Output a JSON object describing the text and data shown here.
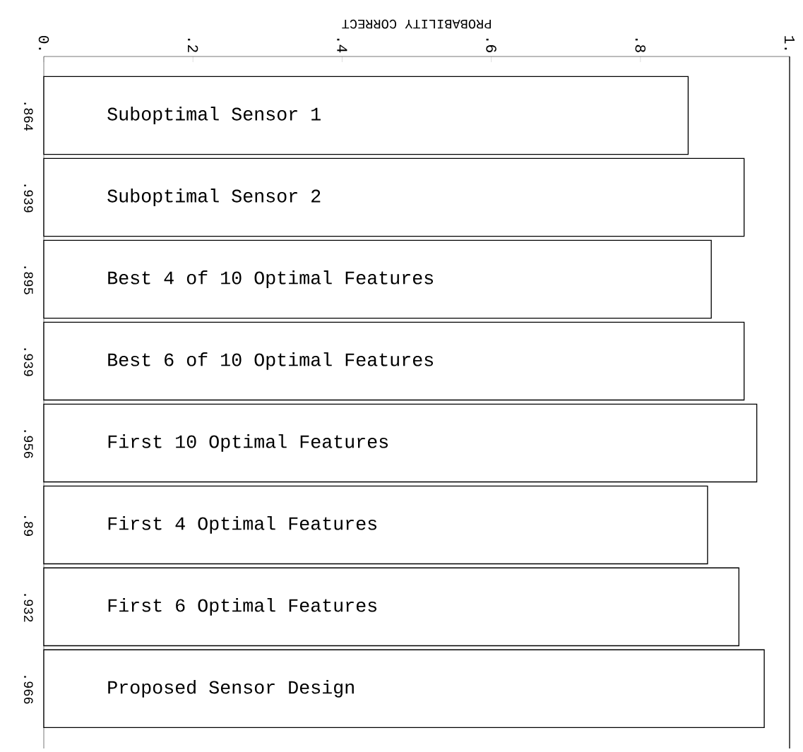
{
  "chart_data": {
    "type": "bar",
    "orientation": "horizontal",
    "xlabel": "PROBABILITY CORRECT",
    "categories": [
      "Suboptimal Sensor 1",
      "Suboptimal Sensor 2",
      "Best 4 of 10 Optimal Features",
      "Best 6 of 10 Optimal Features",
      "First 10 Optimal Features",
      "First 4 Optimal Features",
      "First 6 Optimal Features",
      "Proposed Sensor Design"
    ],
    "values": [
      0.864,
      0.939,
      0.895,
      0.939,
      0.956,
      0.89,
      0.932,
      0.966
    ],
    "value_labels": [
      ".864",
      ".939",
      ".895",
      ".939",
      ".956",
      ".89",
      ".932",
      ".966"
    ],
    "color": "#ffffff",
    "xlim": [
      0,
      1
    ],
    "xticks": [
      {
        "value": 0,
        "label": "0."
      },
      {
        "value": 0.2,
        "label": ".2"
      },
      {
        "value": 0.4,
        "label": ".4"
      },
      {
        "value": 0.6,
        "label": ".6"
      },
      {
        "value": 0.8,
        "label": ".8"
      },
      {
        "value": 1,
        "label": "1."
      }
    ]
  }
}
